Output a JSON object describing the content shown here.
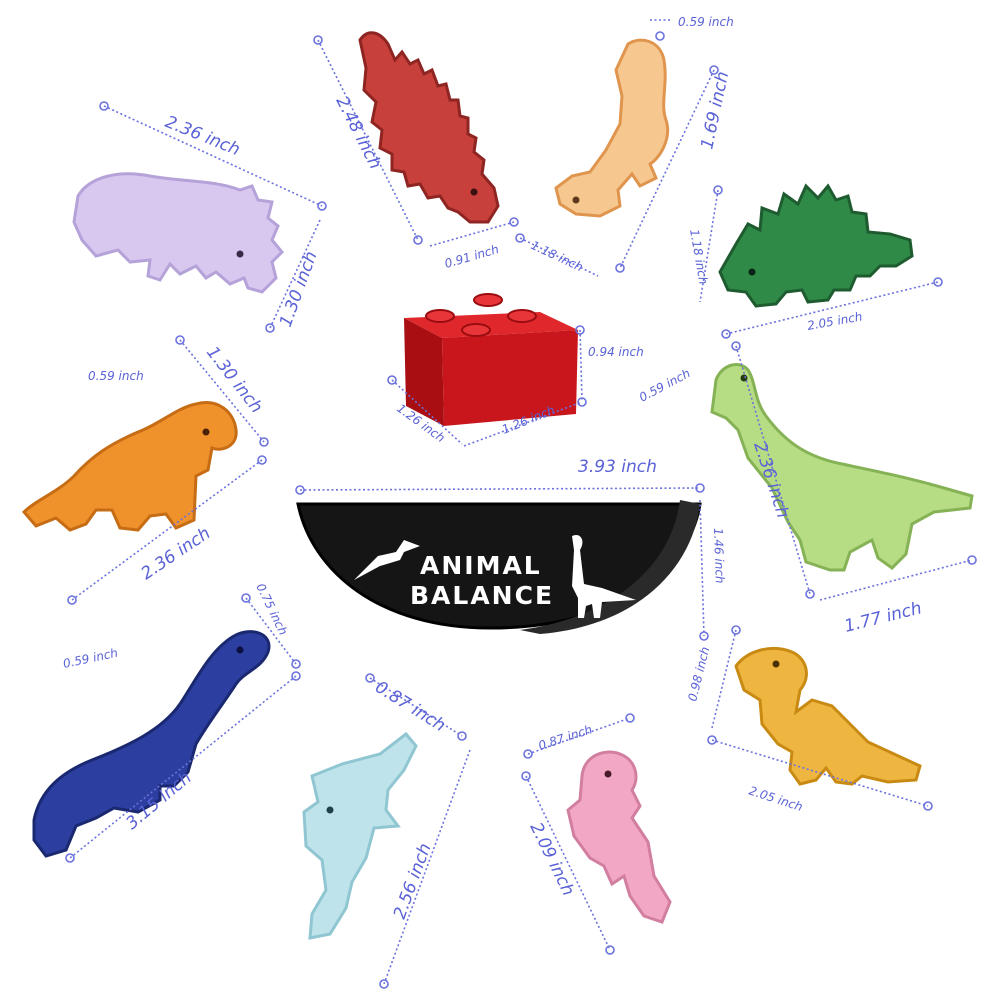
{
  "product": {
    "brand_line1": "ANIMAL",
    "brand_line2": "BALANCE"
  },
  "colors": {
    "red": "#c8403c",
    "peach": "#f6c890",
    "lavender": "#d8c8f0",
    "green": "#2f8a48",
    "orange": "#f0922c",
    "light_green": "#b6dc84",
    "navy": "#2c3fa0",
    "light_blue": "#bfe3ea",
    "pink": "#f2a8c4",
    "yellow": "#eeb640",
    "block": "#c8161c",
    "base": "#151515",
    "annotation": "#5a62d6"
  },
  "dimensions": {
    "red_dino_height": "2.48 inch",
    "red_dino_width": "0.91 inch",
    "peach_dino_thick": "0.59 inch",
    "peach_dino_height": "1.69 inch",
    "peach_dino_width": "1.18 inch",
    "lavender_width": "2.36 inch",
    "lavender_height": "1.30 inch",
    "green_height": "1.18 inch",
    "green_width": "2.05 inch",
    "block_height": "0.94 inch",
    "block_depth": "1.26 inch",
    "block_width": "1.26 inch",
    "orange_thick": "0.59 inch",
    "orange_height": "1.30 inch",
    "orange_width": "2.36 inch",
    "base_width": "3.93 inch",
    "base_height": "1.46 inch",
    "lightgreen_thick": "0.59 inch",
    "lightgreen_height": "2.36 inch",
    "lightgreen_width": "1.77 inch",
    "navy_thick": "0.59 inch",
    "navy_height": "0.75 inch",
    "navy_width": "3.15 inch",
    "blue_width": "0.87 inch",
    "blue_height": "2.56 inch",
    "pink_width": "0.87 inch",
    "pink_height": "2.09 inch",
    "yellow_height": "0.98 inch",
    "yellow_width": "2.05 inch"
  }
}
